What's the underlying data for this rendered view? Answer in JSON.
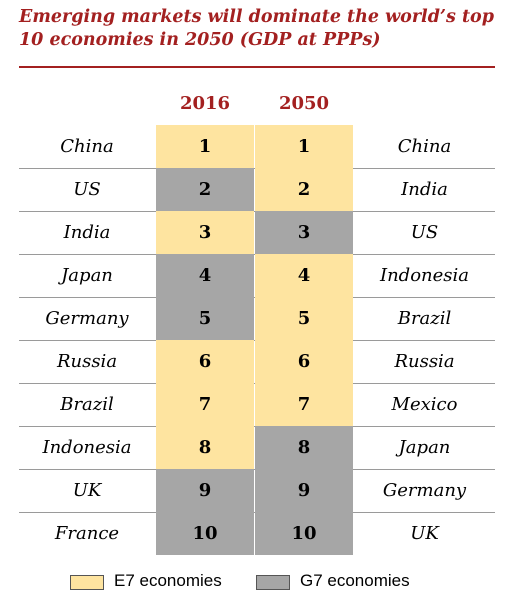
{
  "colors": {
    "E7": "#fee4a0",
    "G7": "#a6a6a6",
    "title": "#a32020"
  },
  "chart_data": {
    "type": "table",
    "title": "Emerging markets will dominate the world’s top 10 economies in 2050 (GDP at PPPs)",
    "columns": [
      "2016",
      "2050"
    ],
    "rows": [
      {
        "rank": "1",
        "country_2016": "China",
        "group_2016": "E7",
        "country_2050": "China",
        "group_2050": "E7"
      },
      {
        "rank": "2",
        "country_2016": "US",
        "group_2016": "G7",
        "country_2050": "India",
        "group_2050": "E7"
      },
      {
        "rank": "3",
        "country_2016": "India",
        "group_2016": "E7",
        "country_2050": "US",
        "group_2050": "G7"
      },
      {
        "rank": "4",
        "country_2016": "Japan",
        "group_2016": "G7",
        "country_2050": "Indonesia",
        "group_2050": "E7"
      },
      {
        "rank": "5",
        "country_2016": "Germany",
        "group_2016": "G7",
        "country_2050": "Brazil",
        "group_2050": "E7"
      },
      {
        "rank": "6",
        "country_2016": "Russia",
        "group_2016": "E7",
        "country_2050": "Russia",
        "group_2050": "E7"
      },
      {
        "rank": "7",
        "country_2016": "Brazil",
        "group_2016": "E7",
        "country_2050": "Mexico",
        "group_2050": "E7"
      },
      {
        "rank": "8",
        "country_2016": "Indonesia",
        "group_2016": "E7",
        "country_2050": "Japan",
        "group_2050": "G7"
      },
      {
        "rank": "9",
        "country_2016": "UK",
        "group_2016": "G7",
        "country_2050": "Germany",
        "group_2050": "G7"
      },
      {
        "rank": "10",
        "country_2016": "France",
        "group_2016": "G7",
        "country_2050": "UK",
        "group_2050": "G7"
      }
    ],
    "legend": [
      {
        "key": "E7",
        "label": "E7 economies"
      },
      {
        "key": "G7",
        "label": "G7 economies"
      }
    ],
    "legend_position": "bottom"
  }
}
